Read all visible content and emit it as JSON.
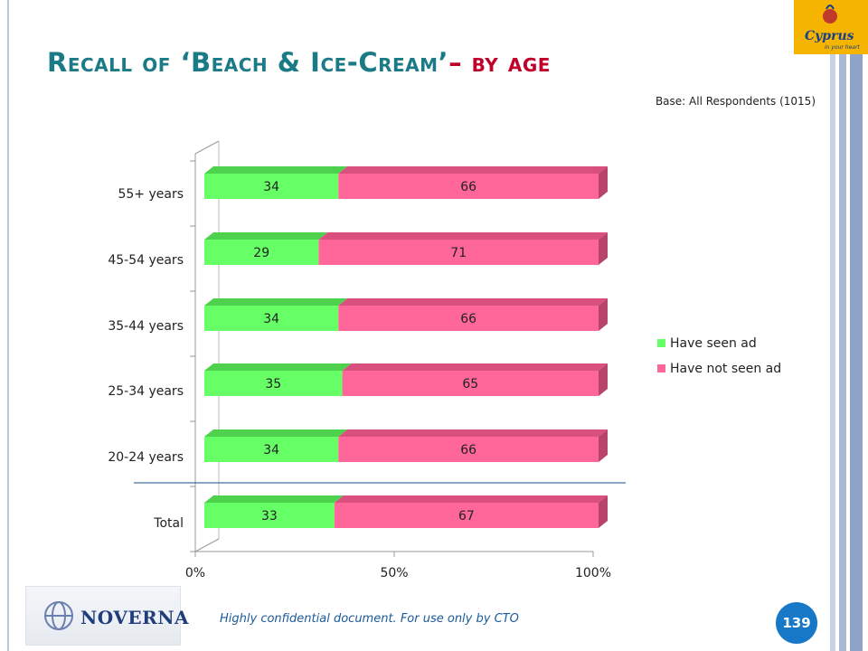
{
  "slide": {
    "title_main": "Recall of ‘Beach & Ice-Cream’",
    "title_accent": "– by age",
    "base_note": "Base: All Respondents (1015)",
    "footer_note": "Highly confidential document. For use only by CTO",
    "page_number": "139",
    "company_logo_text": "NOVERNA",
    "brand_logo_text": "Cyprus",
    "brand_logo_tagline": "in your heart"
  },
  "colors": {
    "seen": "#66ff66",
    "seen_top": "#4ed24e",
    "not_seen": "#ff6699",
    "not_seen_top": "#d9507e",
    "not_seen_side": "#b8436b",
    "title": "#1a7a86",
    "title_accent": "#c0002a"
  },
  "chart_data": {
    "type": "bar",
    "orientation": "horizontal",
    "stacked": "percent",
    "categories": [
      "55+ years",
      "45-54 years",
      "35-44 years",
      "25-34 years",
      "20-24 years",
      "Total"
    ],
    "series": [
      {
        "name": "Have seen ad",
        "values": [
          34,
          29,
          34,
          35,
          34,
          33
        ]
      },
      {
        "name": "Have not seen ad",
        "values": [
          66,
          71,
          66,
          65,
          66,
          67
        ]
      }
    ],
    "x_ticks": [
      "0%",
      "50%",
      "100%"
    ],
    "xlim": [
      0,
      100
    ],
    "legend": "right",
    "grid": false
  }
}
